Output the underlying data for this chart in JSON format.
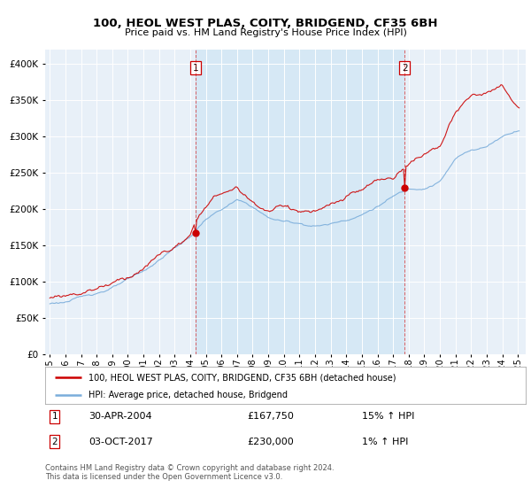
{
  "title": "100, HEOL WEST PLAS, COITY, BRIDGEND, CF35 6BH",
  "subtitle": "Price paid vs. HM Land Registry's House Price Index (HPI)",
  "legend_line1": "100, HEOL WEST PLAS, COITY, BRIDGEND, CF35 6BH (detached house)",
  "legend_line2": "HPI: Average price, detached house, Bridgend",
  "transaction1_date": "30-APR-2004",
  "transaction1_price": "£167,750",
  "transaction1_hpi": "15% ↑ HPI",
  "transaction2_date": "03-OCT-2017",
  "transaction2_price": "£230,000",
  "transaction2_hpi": "1% ↑ HPI",
  "footer": "Contains HM Land Registry data © Crown copyright and database right 2024.\nThis data is licensed under the Open Government Licence v3.0.",
  "red_color": "#cc0000",
  "blue_color": "#7aaddb",
  "shade_color": "#d6e8f5",
  "background_color": "#ffffff",
  "plot_bg_color": "#e8f0f8",
  "ylim_min": 0,
  "ylim_max": 420000,
  "yticks": [
    0,
    50000,
    100000,
    150000,
    200000,
    250000,
    300000,
    350000,
    400000
  ],
  "ytick_labels": [
    "£0",
    "£50K",
    "£100K",
    "£150K",
    "£200K",
    "£250K",
    "£300K",
    "£350K",
    "£400K"
  ],
  "transaction1_x": 2004.33,
  "transaction1_y": 167750,
  "transaction2_x": 2017.75,
  "transaction2_y": 230000,
  "xstart": 1995.0,
  "xend": 2025.5,
  "xtick_years": [
    1995,
    1996,
    1997,
    1998,
    1999,
    2000,
    2001,
    2002,
    2003,
    2004,
    2005,
    2006,
    2007,
    2008,
    2009,
    2010,
    2011,
    2012,
    2013,
    2014,
    2015,
    2016,
    2017,
    2018,
    2019,
    2020,
    2021,
    2022,
    2023,
    2024,
    2025
  ]
}
